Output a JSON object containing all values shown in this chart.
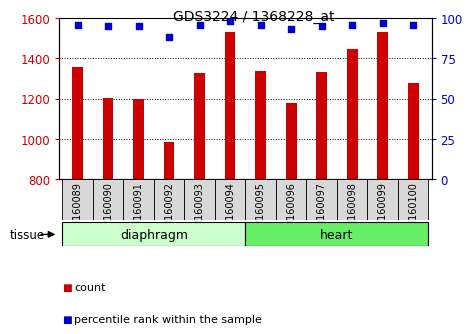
{
  "title": "GDS3224 / 1368228_at",
  "samples": [
    "GSM160089",
    "GSM160090",
    "GSM160091",
    "GSM160092",
    "GSM160093",
    "GSM160094",
    "GSM160095",
    "GSM160096",
    "GSM160097",
    "GSM160098",
    "GSM160099",
    "GSM160100"
  ],
  "counts": [
    1355,
    1205,
    1200,
    985,
    1325,
    1530,
    1335,
    1180,
    1330,
    1445,
    1530,
    1280
  ],
  "percentiles": [
    96,
    95,
    95,
    88,
    96,
    98,
    96,
    93,
    95,
    96,
    97,
    96
  ],
  "ylim_left": [
    800,
    1600
  ],
  "ylim_right": [
    0,
    100
  ],
  "yticks_left": [
    800,
    1000,
    1200,
    1400,
    1600
  ],
  "yticks_right": [
    0,
    25,
    50,
    75,
    100
  ],
  "bar_color": "#cc0000",
  "dot_color": "#0000cc",
  "diaphragm_color_light": "#ccffcc",
  "heart_color": "#66ee66",
  "tissue_label": "tissue",
  "legend_count": "count",
  "legend_percentile": "percentile rank within the sample",
  "bar_width": 0.35,
  "xlabel_fontsize": 7,
  "ylabel_left_color": "#cc0000",
  "ylabel_right_color": "#0000cc",
  "tick_label_bg": "#d8d8d8",
  "grid_color": "#000000",
  "title_fontsize": 10
}
